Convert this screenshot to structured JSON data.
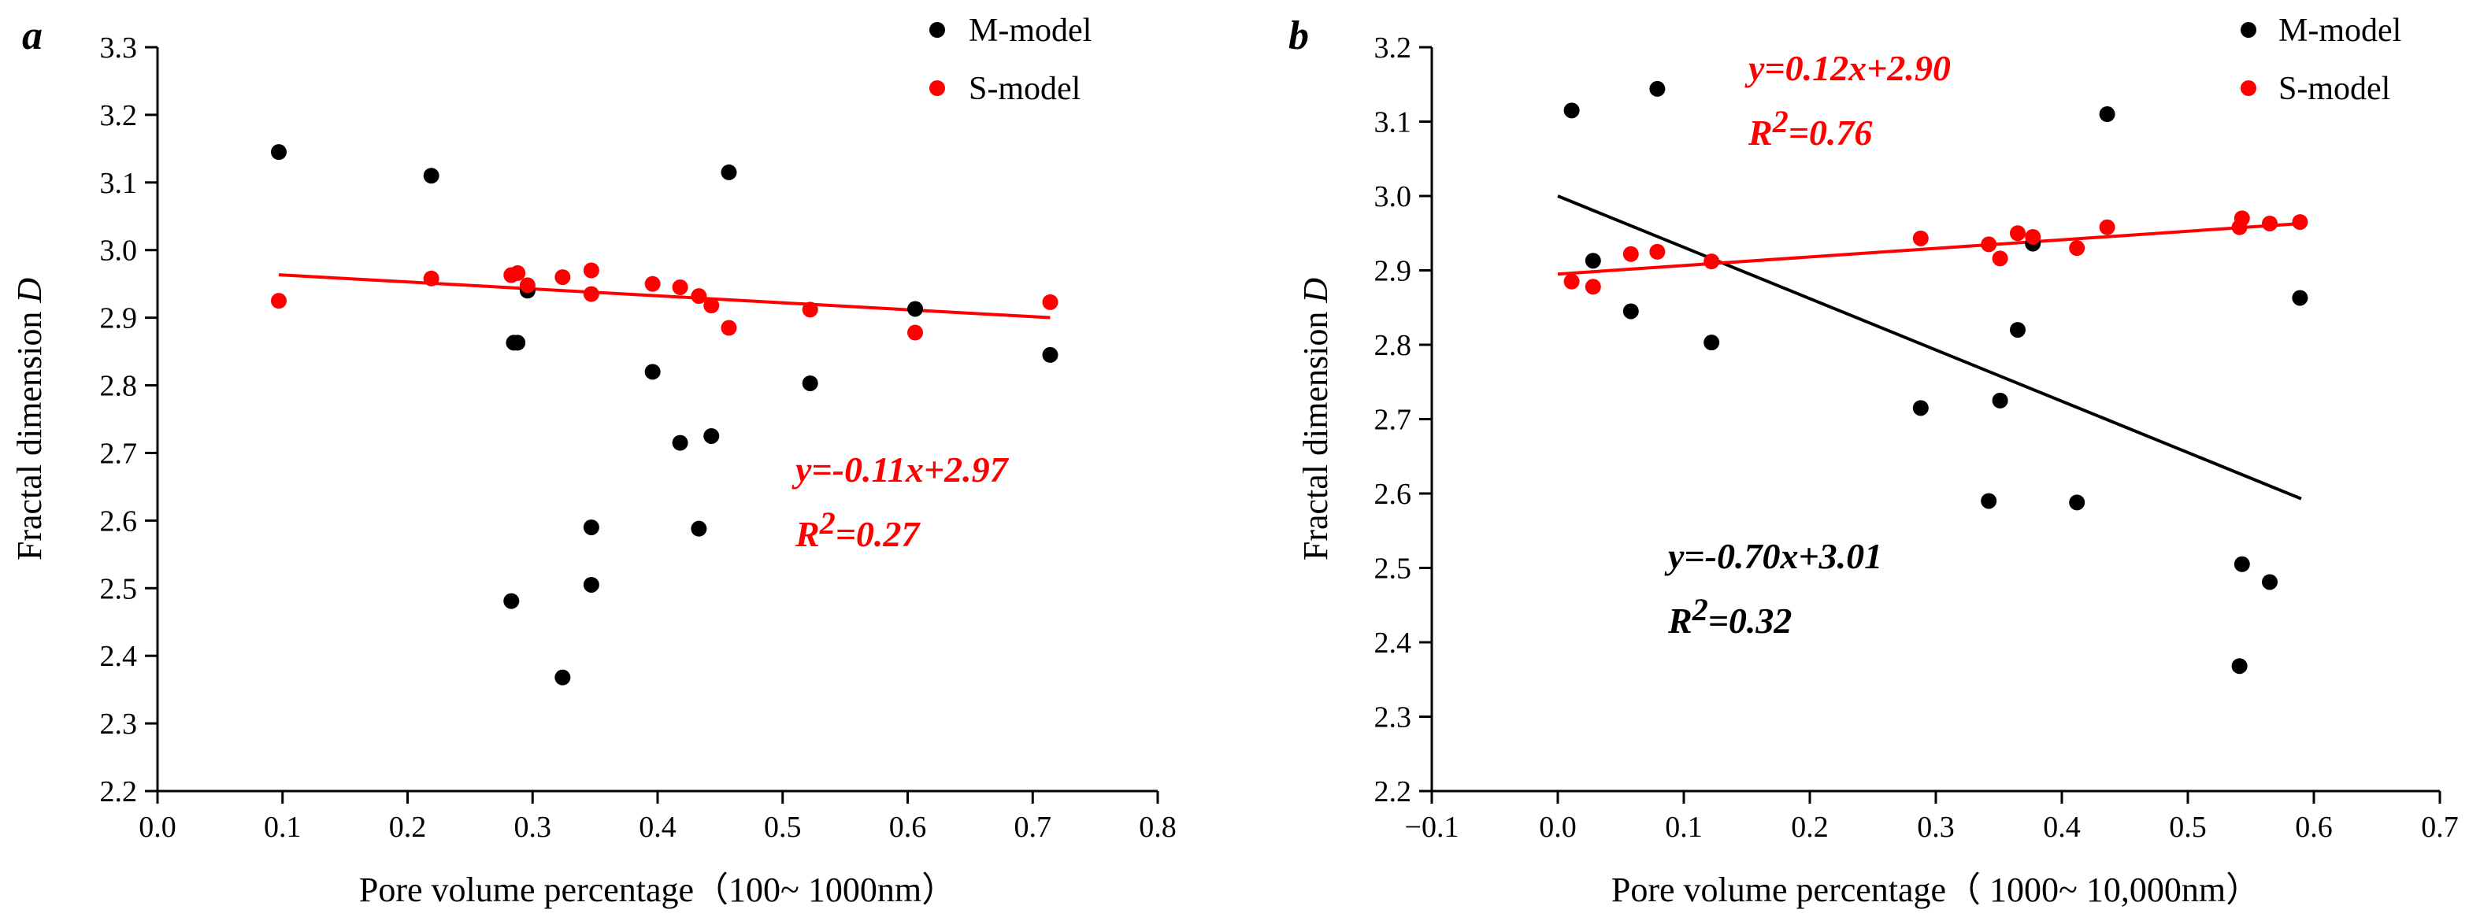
{
  "chart_data": [
    {
      "type": "scatter",
      "panel_label": "a",
      "xlabel": "Pore volume percentage（100~ 1000nm）",
      "ylabel_prefix": "Fractal dimension ",
      "ylabel_var": "D",
      "xlim": [
        0.0,
        0.8
      ],
      "ylim": [
        2.2,
        3.3
      ],
      "xticks": [
        0.0,
        0.1,
        0.2,
        0.3,
        0.4,
        0.5,
        0.6,
        0.7,
        0.8
      ],
      "yticks": [
        2.2,
        2.3,
        2.4,
        2.5,
        2.6,
        2.7,
        2.8,
        2.9,
        3.0,
        3.1,
        3.2,
        3.3
      ],
      "xtick_labels": [
        "0.0",
        "0.1",
        "0.2",
        "0.3",
        "0.4",
        "0.5",
        "0.6",
        "0.7",
        "0.8"
      ],
      "ytick_labels": [
        "2.2",
        "2.3",
        "2.4",
        "2.5",
        "2.6",
        "2.7",
        "2.8",
        "2.9",
        "3.0",
        "3.1",
        "3.2",
        "3.3"
      ],
      "legend_position": "top-right",
      "series": [
        {
          "name": "M-model",
          "color": "#000000",
          "x": [
            0.097,
            0.219,
            0.288,
            0.296,
            0.285,
            0.396,
            0.418,
            0.443,
            0.347,
            0.433,
            0.347,
            0.283,
            0.324,
            0.457,
            0.522,
            0.606,
            0.714
          ],
          "y": [
            3.145,
            3.11,
            2.863,
            2.94,
            2.863,
            2.82,
            2.715,
            2.725,
            2.59,
            2.588,
            2.505,
            2.481,
            2.368,
            3.115,
            2.803,
            2.913,
            2.845
          ]
        },
        {
          "name": "S-model",
          "color": "#ff0000",
          "x": [
            0.097,
            0.219,
            0.283,
            0.288,
            0.296,
            0.324,
            0.347,
            0.347,
            0.396,
            0.418,
            0.433,
            0.443,
            0.457,
            0.522,
            0.606,
            0.714
          ],
          "y": [
            2.925,
            2.958,
            2.963,
            2.966,
            2.948,
            2.96,
            2.97,
            2.935,
            2.95,
            2.945,
            2.932,
            2.918,
            2.885,
            2.912,
            2.878,
            2.923
          ]
        }
      ],
      "fit_lines": [
        {
          "series": "S-model",
          "color": "#ff0000",
          "x": [
            0.097,
            0.714
          ],
          "y": [
            2.9635,
            2.9001
          ]
        }
      ],
      "annotations": [
        {
          "id": "eq-a",
          "color": "#ff0000",
          "eq": "y=-0.11x+2.97",
          "r2_base": "R",
          "r2_exp": "2",
          "r2_value": "=0.27"
        }
      ]
    },
    {
      "type": "scatter",
      "panel_label": "b",
      "xlabel": "Pore volume percentage（ 1000~ 10,000nm）",
      "ylabel_prefix": "Fractal dimension ",
      "ylabel_var": "D",
      "xlim": [
        -0.1,
        0.7
      ],
      "ylim": [
        2.2,
        3.2
      ],
      "xticks": [
        -0.1,
        0.0,
        0.1,
        0.2,
        0.3,
        0.4,
        0.5,
        0.6,
        0.7
      ],
      "yticks": [
        2.2,
        2.3,
        2.4,
        2.5,
        2.6,
        2.7,
        2.8,
        2.9,
        3.0,
        3.1,
        3.2
      ],
      "xtick_labels": [
        "−0.1",
        "0.0",
        "0.1",
        "0.2",
        "0.3",
        "0.4",
        "0.5",
        "0.6",
        "0.7"
      ],
      "ytick_labels": [
        "2.2",
        "2.3",
        "2.4",
        "2.5",
        "2.6",
        "2.7",
        "2.8",
        "2.9",
        "3.0",
        "3.1",
        "3.2"
      ],
      "legend_position": "top-right",
      "series": [
        {
          "name": "M-model",
          "color": "#000000",
          "x": [
            0.011,
            0.079,
            0.436,
            0.028,
            0.058,
            0.122,
            0.377,
            0.365,
            0.589,
            0.288,
            0.351,
            0.342,
            0.412,
            0.543,
            0.565,
            0.541
          ],
          "y": [
            3.115,
            3.144,
            3.11,
            2.913,
            2.845,
            2.803,
            2.936,
            2.82,
            2.863,
            2.715,
            2.725,
            2.59,
            2.588,
            2.505,
            2.481,
            2.368
          ]
        },
        {
          "name": "S-model",
          "color": "#ff0000",
          "x": [
            0.011,
            0.028,
            0.058,
            0.079,
            0.122,
            0.288,
            0.342,
            0.351,
            0.365,
            0.377,
            0.412,
            0.436,
            0.541,
            0.543,
            0.565,
            0.589
          ],
          "y": [
            2.885,
            2.878,
            2.922,
            2.925,
            2.912,
            2.943,
            2.935,
            2.916,
            2.95,
            2.945,
            2.93,
            2.958,
            2.958,
            2.97,
            2.963,
            2.965
          ]
        }
      ],
      "fit_lines": [
        {
          "series": "M-model",
          "color": "#000000",
          "x": [
            0.0,
            0.59
          ],
          "y": [
            3.0,
            2.593
          ]
        },
        {
          "series": "S-model",
          "color": "#ff0000",
          "x": [
            0.0,
            0.59
          ],
          "y": [
            2.895,
            2.963
          ]
        }
      ],
      "annotations": [
        {
          "id": "eq-b-red",
          "color": "#ff0000",
          "eq": "y=0.12x+2.90",
          "r2_base": "R",
          "r2_exp": "2",
          "r2_value": "=0.76"
        },
        {
          "id": "eq-b-black",
          "color": "#000000",
          "eq": "y=-0.70x+3.01",
          "r2_base": "R",
          "r2_exp": "2",
          "r2_value": "=0.32"
        }
      ]
    }
  ]
}
